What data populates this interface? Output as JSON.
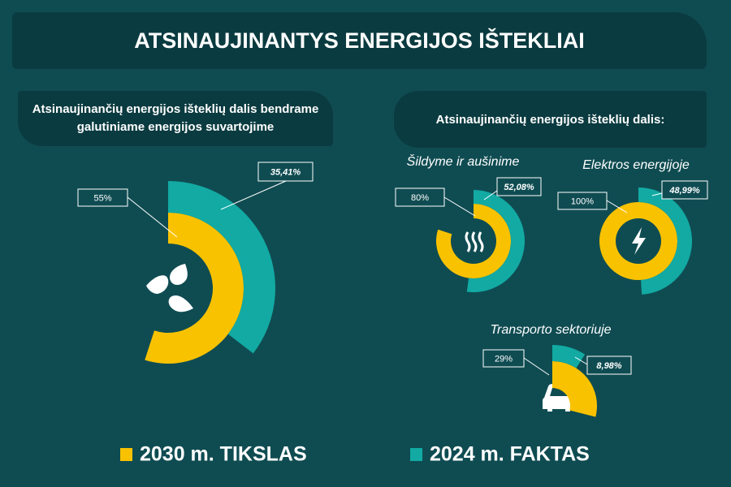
{
  "title": "ATSINAUJINANTYS ENERGIJOS IŠTEKLIAI",
  "right_panel_title": "Atsinaujinančių energijos išteklių dalis:",
  "legend": [
    {
      "name": "2030 m. TIKSLAS",
      "color": "#f9c200"
    },
    {
      "name": "2024 m. FAKTAS",
      "color": "#12aaa3"
    }
  ],
  "chart_data": [
    {
      "type": "radial",
      "title": "Atsinaujinančių energijos išteklių dalis bendrame galutiniame energijos suvartojime",
      "values": [
        55,
        35.41
      ],
      "value_labels": [
        "55%",
        "35,41%"
      ]
    },
    {
      "type": "radial",
      "title": "Šildyme ir aušinime",
      "values": [
        80,
        52.08
      ],
      "value_labels": [
        "80%",
        "52,08%"
      ]
    },
    {
      "type": "radial",
      "title": "Elektros energijoje",
      "values": [
        100,
        48.99
      ],
      "value_labels": [
        "100%",
        "48,99%"
      ]
    },
    {
      "type": "radial",
      "title": "Transporto sektoriuje",
      "values": [
        29,
        8.98
      ],
      "value_labels": [
        "29%",
        "8,98%"
      ]
    }
  ]
}
